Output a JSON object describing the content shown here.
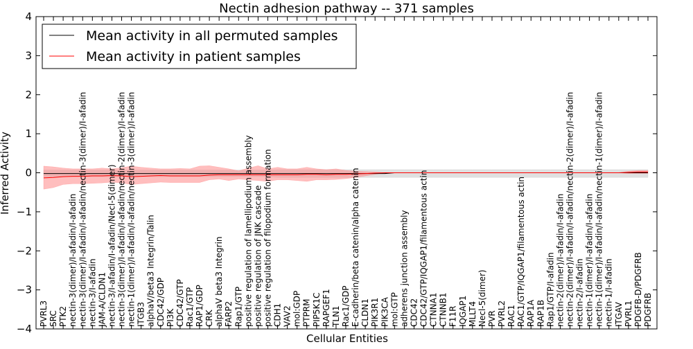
{
  "chart_data": {
    "type": "line",
    "title": "Nectin adhesion pathway -- 371 samples",
    "xlabel": "Cellular Entities",
    "ylabel": "Inferred Activity",
    "ylim": [
      -4,
      4
    ],
    "yticks": [
      -4,
      -3,
      -2,
      -1,
      0,
      1,
      2,
      3,
      4
    ],
    "ytick_labels": [
      "−4",
      "−3",
      "−2",
      "−1",
      "0",
      "1",
      "2",
      "3",
      "4"
    ],
    "legend_position": "top-left",
    "categories": [
      "PVRL3",
      "SRC",
      "PTK2",
      "nectin-3(dimer)/I-afadin/I-afadin",
      "nectin-3(dimer)/I-afadin/I-afadin/nectin-3(dimer)/I-afadin",
      "nectin-3/I-afadin",
      "JAM-A/CLDN1",
      "nectin-3/I-afadin/I-afadin/Necl-5(dimer)",
      "nectin-3(dimer)/I-afadin/I-afadin/nectin-2(dimer)/I-afadin",
      "nectin-1(dimer)/I-afadin/I-afadin/nectin-3(dimer)/I-afadin",
      "ITGB3",
      "alphaV/beta3 Integrin/Talin",
      "CDC42/GDP",
      "PI3K",
      "CDC42/GTP",
      "Rac1/GTP",
      "RAP1/GDP",
      "CRK",
      "alphaV beta3 Integrin",
      "FARP2",
      "Rap1/GTP",
      "positive regulation of lamellipodium assembly",
      "positive regulation of JNK cascade",
      "positive regulation of filopodium formation",
      "CDH1",
      "VAV2",
      "mol:GDP",
      "PTPRM",
      "PIP5K1C",
      "RAPGEF1",
      "TLN1",
      "Rac1/GDP",
      "E-cadherin/beta catenin/alpha catenin",
      "CLDN1",
      "PIK3R1",
      "PIK3CA",
      "mol:GTP",
      "adherens junction assembly",
      "CDC42",
      "CDC42/GTP/IQGAP1/filamentous actin",
      "CTNNA1",
      "CTNNB1",
      "F11R",
      "IQGAP1",
      "MLLT4",
      "Necl-5(dimer)",
      "PVR",
      "PVRL2",
      "RAC1",
      "RAC1/GTP/IQGAP1/filamentous actin",
      "RAP1A",
      "RAP1B",
      "Rap1/GTP/I-afadin",
      "nectin-2(dimer)/I-afadin/I-afadin",
      "nectin-2(dimer)/I-afadin/I-afadin/nectin-2(dimer)/I-afadin",
      "nectin-2/I-afadin",
      "nectin-1(dimer)/I-afadin/I-afadin",
      "nectin-1(dimer)/I-afadin/I-afadin/nectin-1(dimer)/I-afadin",
      "nectin-1/I-afadin",
      "ITGAV",
      "PVRL1",
      "PDGFB-D/PDGFRB",
      "PDGFRB"
    ],
    "series": [
      {
        "name": "Mean activity in all permuted samples",
        "color": "#000000",
        "band_color": "#cccccc",
        "values": [
          -0.02,
          -0.02,
          -0.02,
          -0.02,
          -0.02,
          -0.02,
          -0.02,
          -0.02,
          -0.02,
          -0.02,
          -0.02,
          -0.02,
          -0.02,
          -0.02,
          -0.02,
          -0.02,
          -0.02,
          -0.02,
          -0.02,
          -0.02,
          -0.02,
          -0.02,
          -0.02,
          -0.02,
          -0.02,
          -0.02,
          -0.02,
          -0.02,
          -0.02,
          -0.02,
          -0.02,
          -0.02,
          -0.02,
          -0.02,
          -0.02,
          -0.02,
          0,
          0,
          0,
          0,
          0,
          0,
          0,
          0,
          0,
          0,
          0,
          0,
          0,
          0,
          0,
          0,
          0,
          0,
          0,
          0,
          0,
          0,
          0,
          0,
          0,
          0,
          0
        ],
        "band_lower": [
          -0.1,
          -0.1,
          -0.1,
          -0.1,
          -0.1,
          -0.1,
          -0.1,
          -0.1,
          -0.1,
          -0.1,
          -0.1,
          -0.1,
          -0.1,
          -0.1,
          -0.1,
          -0.1,
          -0.1,
          -0.1,
          -0.1,
          -0.1,
          -0.1,
          -0.1,
          -0.1,
          -0.1,
          -0.12,
          -0.12,
          -0.12,
          -0.12,
          -0.12,
          -0.12,
          -0.12,
          -0.12,
          -0.12,
          -0.12,
          -0.12,
          -0.12,
          -0.12,
          -0.12,
          -0.12,
          -0.12,
          -0.12,
          -0.12,
          -0.12,
          -0.12,
          -0.12,
          -0.12,
          -0.12,
          -0.12,
          -0.12,
          -0.12,
          -0.12,
          -0.12,
          -0.12,
          -0.12,
          -0.12,
          -0.12,
          -0.12,
          -0.12,
          -0.12,
          -0.12,
          -0.12,
          -0.12,
          -0.12
        ],
        "band_upper": [
          0.07,
          0.07,
          0.07,
          0.07,
          0.07,
          0.07,
          0.07,
          0.07,
          0.07,
          0.07,
          0.07,
          0.07,
          0.07,
          0.07,
          0.07,
          0.07,
          0.07,
          0.07,
          0.07,
          0.07,
          0.07,
          0.07,
          0.07,
          0.07,
          0.08,
          0.08,
          0.08,
          0.08,
          0.08,
          0.08,
          0.08,
          0.08,
          0.08,
          0.08,
          0.08,
          0.08,
          0.08,
          0.08,
          0.08,
          0.08,
          0.08,
          0.08,
          0.08,
          0.08,
          0.08,
          0.08,
          0.08,
          0.08,
          0.08,
          0.08,
          0.08,
          0.08,
          0.08,
          0.08,
          0.08,
          0.08,
          0.08,
          0.08,
          0.08,
          0.08,
          0.08,
          0.08,
          0.08
        ]
      },
      {
        "name": "Mean activity in patient samples",
        "color": "#ff0000",
        "band_color": "#ff8888",
        "values": [
          -0.13,
          -0.12,
          -0.1,
          -0.09,
          -0.09,
          -0.08,
          -0.08,
          -0.07,
          -0.08,
          -0.1,
          -0.09,
          -0.08,
          -0.07,
          -0.08,
          -0.08,
          -0.08,
          -0.08,
          -0.06,
          -0.05,
          -0.05,
          -0.05,
          -0.05,
          -0.05,
          -0.05,
          -0.05,
          -0.05,
          -0.05,
          -0.04,
          -0.04,
          -0.05,
          -0.04,
          -0.04,
          -0.03,
          -0.02,
          -0.01,
          0,
          0,
          0,
          0,
          0,
          0,
          0,
          0,
          0,
          0,
          0,
          0,
          0,
          0,
          0,
          0,
          0,
          0,
          0,
          0,
          0,
          0,
          0,
          0,
          0,
          0.01,
          0.02,
          0.02
        ],
        "band_lower": [
          -0.42,
          -0.38,
          -0.3,
          -0.28,
          -0.28,
          -0.27,
          -0.26,
          -0.24,
          -0.26,
          -0.3,
          -0.28,
          -0.26,
          -0.24,
          -0.25,
          -0.25,
          -0.25,
          -0.25,
          -0.18,
          -0.16,
          -0.2,
          -0.16,
          -0.18,
          -0.2,
          -0.22,
          -0.18,
          -0.18,
          -0.2,
          -0.22,
          -0.18,
          -0.18,
          -0.17,
          -0.15,
          -0.12,
          -0.08,
          -0.04,
          0,
          0,
          0,
          0,
          0,
          0,
          0,
          0,
          0,
          0,
          0,
          0,
          0,
          0,
          0,
          0,
          0,
          0,
          0,
          0,
          0,
          0,
          0,
          0,
          0,
          -0.02,
          -0.02,
          -0.02
        ],
        "band_upper": [
          0.17,
          0.15,
          0.12,
          0.1,
          0.1,
          0.1,
          0.12,
          0.1,
          0.13,
          0.17,
          0.14,
          0.12,
          0.1,
          0.1,
          0.11,
          0.1,
          0.17,
          0.18,
          0.14,
          0.1,
          0.05,
          0.12,
          0.18,
          0.1,
          0.14,
          0.1,
          0.1,
          0.14,
          0.1,
          0.08,
          0.1,
          0.06,
          0.04,
          0.03,
          0.02,
          0,
          0,
          0,
          0,
          0,
          0,
          0,
          0,
          0,
          0,
          0,
          0,
          0,
          0,
          0,
          0,
          0,
          0,
          0,
          0,
          0,
          0,
          0,
          0,
          0,
          0.04,
          0.06,
          0.06
        ]
      }
    ]
  }
}
